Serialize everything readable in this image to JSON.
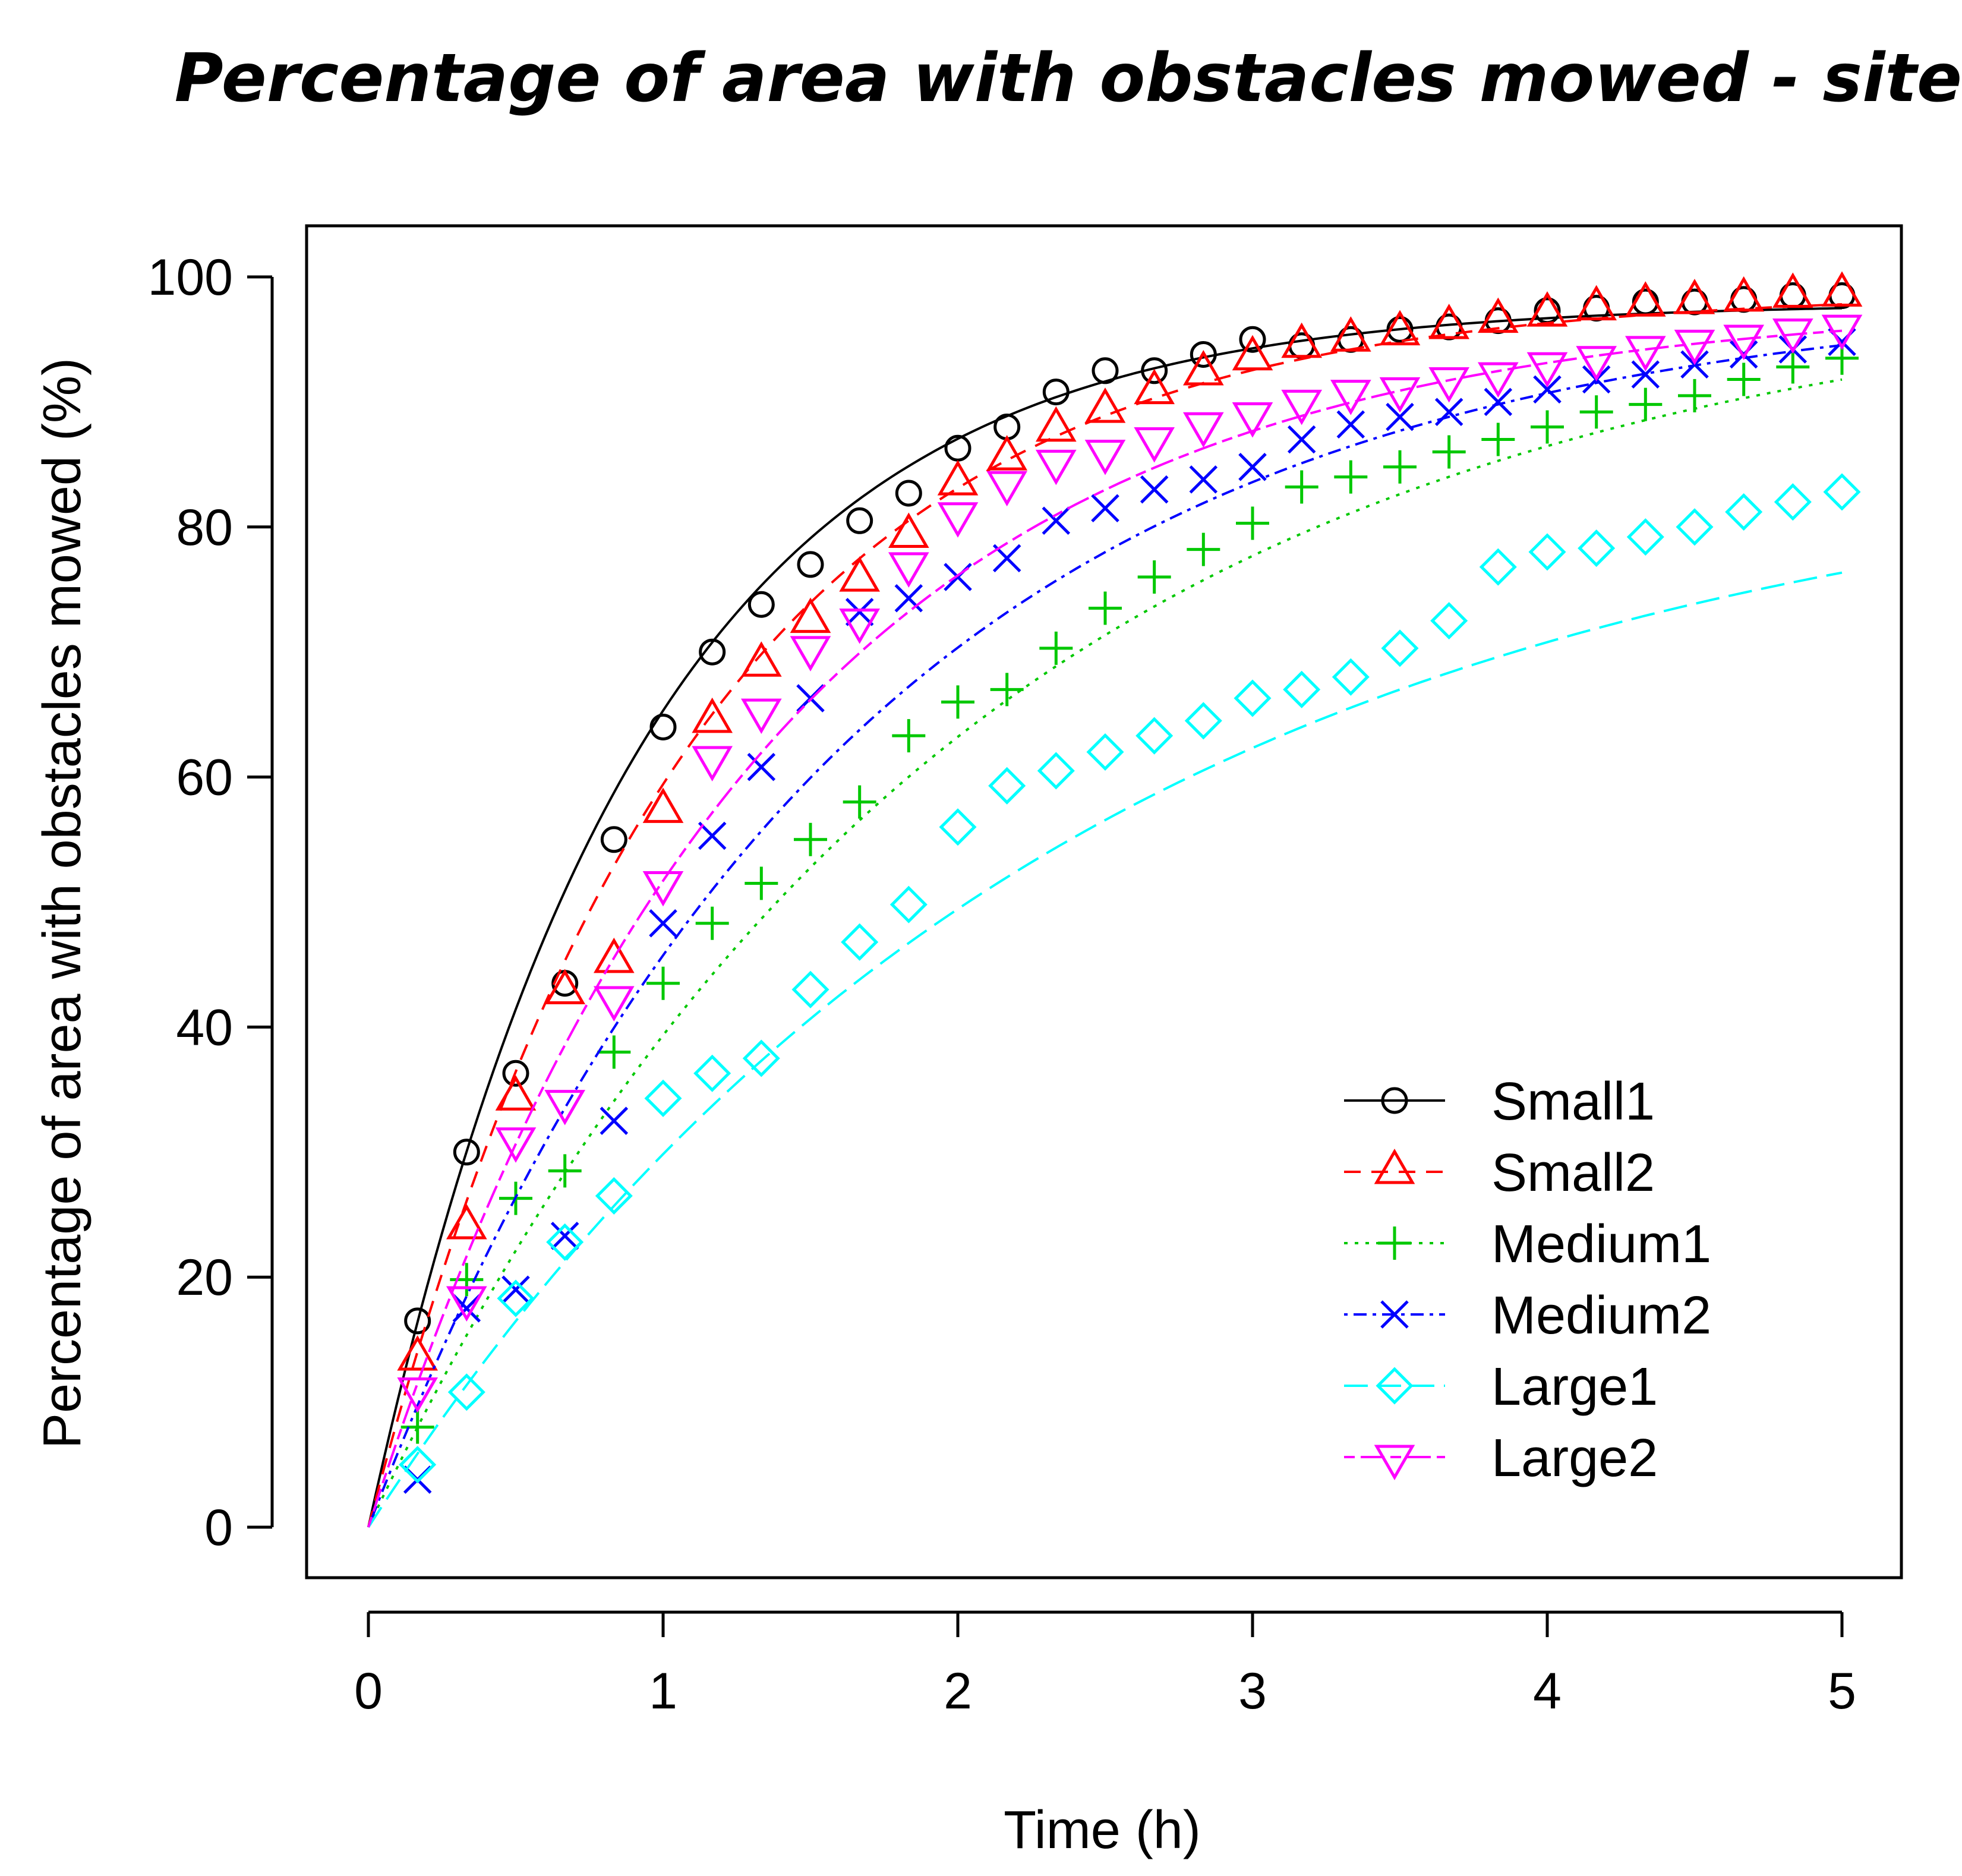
{
  "chart_data": {
    "type": "line",
    "title": "Percentage of area with obstacles mowed - site B",
    "xlabel": "Time (h)",
    "ylabel": "Percentage of area with obstacles mowed (%)",
    "xlim": [
      0,
      5
    ],
    "ylim": [
      0,
      100
    ],
    "xticks": [
      0,
      1,
      2,
      3,
      4,
      5
    ],
    "yticks": [
      0,
      20,
      40,
      60,
      80,
      100
    ],
    "grid": false,
    "legend_position": "bottom-right",
    "x": [
      0,
      0.1667,
      0.3333,
      0.5,
      0.6667,
      0.8333,
      1,
      1.1667,
      1.3333,
      1.5,
      1.6667,
      1.8333,
      2,
      2.1667,
      2.3333,
      2.5,
      2.6667,
      2.8333,
      3,
      3.1667,
      3.3333,
      3.5,
      3.6667,
      3.8333,
      4,
      4.1667,
      4.3333,
      4.5,
      4.6667,
      4.8333,
      5
    ],
    "series": [
      {
        "name": "Small1",
        "color": "#000000",
        "marker": "circle",
        "dash": "solid",
        "curve_rate": 1.1,
        "curve_max": 97.9,
        "values": [
          null,
          16.5,
          30,
          36.3,
          43.5,
          55,
          64,
          70,
          73.8,
          77,
          80.5,
          82.7,
          86.3,
          88,
          90.8,
          92.5,
          92.5,
          93.8,
          95,
          94.5,
          95,
          95.8,
          96,
          96.5,
          97.3,
          97.5,
          98,
          98,
          98.2,
          98.5,
          98.5
        ]
      },
      {
        "name": "Small2",
        "color": "#ff0000",
        "marker": "triangle-up",
        "dash": "dashed",
        "curve_rate": 0.92,
        "curve_max": 98.8,
        "values": [
          null,
          13.5,
          24,
          34.3,
          42.8,
          45.3,
          57.3,
          64.5,
          69,
          72.5,
          75.8,
          79.3,
          83.5,
          85.5,
          87.8,
          89.3,
          90.8,
          92.3,
          93.5,
          94.5,
          95,
          95.5,
          96,
          96.5,
          97,
          97.5,
          97.8,
          98,
          98.2,
          98.5,
          98.6
        ]
      },
      {
        "name": "Medium1",
        "color": "#00c800",
        "marker": "plus",
        "dash": "dotted",
        "curve_rate": 0.5,
        "curve_max": 100,
        "values": [
          null,
          8,
          19.8,
          26.3,
          28.5,
          38,
          43.5,
          48.3,
          51.5,
          55,
          58,
          63.3,
          66,
          67,
          70.3,
          73.5,
          76,
          78.2,
          80.3,
          83.2,
          84,
          84.8,
          86,
          87,
          88,
          89.2,
          89.8,
          90.5,
          91.8,
          92.8,
          93.5
        ]
      },
      {
        "name": "Medium2",
        "color": "#0000ff",
        "marker": "x",
        "dash": "dashdot",
        "curve_rate": 0.62,
        "curve_max": 99,
        "values": [
          null,
          3.8,
          17.5,
          19,
          23.3,
          32.5,
          48.3,
          55.3,
          60.8,
          66.3,
          73.2,
          74.3,
          76,
          77.5,
          80.5,
          81.5,
          83,
          83.8,
          84.8,
          87,
          88.2,
          88.8,
          89.2,
          90,
          91,
          91.8,
          92.2,
          93,
          93.8,
          94.2,
          94.8
        ]
      },
      {
        "name": "Large1",
        "color": "#00ffff",
        "marker": "diamond",
        "dash": "longdash",
        "curve_rate": 0.42,
        "curve_max": 87,
        "values": [
          null,
          5,
          10.8,
          18.3,
          22.8,
          26.5,
          34.3,
          36.3,
          37.5,
          43,
          46.8,
          49.8,
          56,
          59.3,
          60.5,
          62,
          63.3,
          64.5,
          66.3,
          67,
          68,
          70.3,
          72.5,
          76.8,
          78,
          78.3,
          79.2,
          80,
          81.2,
          82,
          82.8
        ]
      },
      {
        "name": "Large2",
        "color": "#ff00ff",
        "marker": "triangle-down",
        "dash": "twodash",
        "curve_rate": 0.75,
        "curve_max": 98,
        "values": [
          null,
          11,
          18.3,
          31,
          34,
          42.3,
          51.5,
          61.5,
          65.3,
          70.3,
          72.5,
          77,
          81,
          83.5,
          85.2,
          86,
          87,
          88.2,
          89,
          90,
          90.8,
          91,
          91.8,
          92.2,
          93,
          93.5,
          94.3,
          94.8,
          95.2,
          95.7,
          96
        ]
      }
    ]
  }
}
